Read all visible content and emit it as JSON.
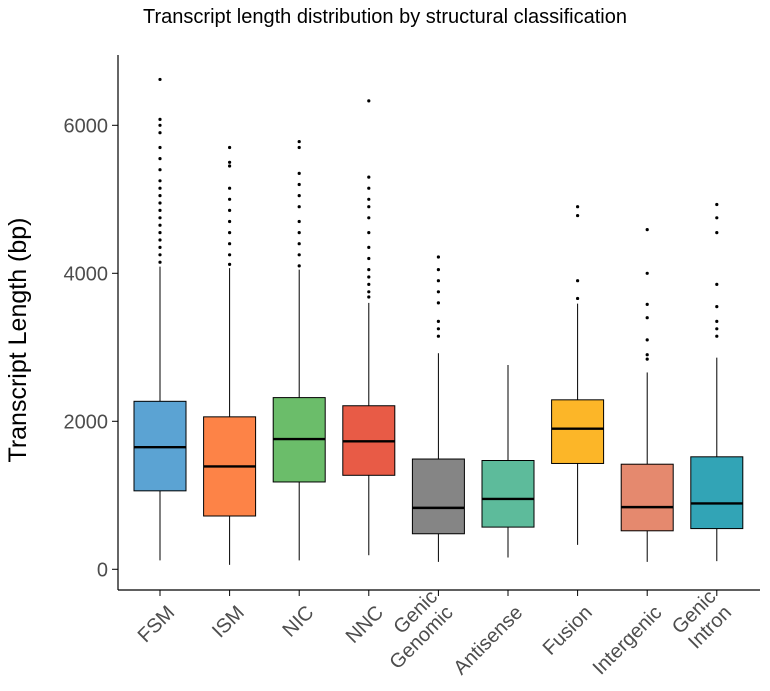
{
  "chart_data": {
    "type": "box",
    "title": "Transcript length distribution by structural classification",
    "xlabel": "",
    "ylabel": "Transcript Length (bp)",
    "ylim": [
      -280,
      6950
    ],
    "yticks": [
      0,
      2000,
      4000,
      6000
    ],
    "grid": false,
    "legend": "none",
    "categories": [
      {
        "label": [
          "FSM"
        ],
        "color": "#5ba3d3",
        "min": 120,
        "q1": 1060,
        "median": 1650,
        "q3": 2270,
        "max": 4090,
        "outliers": [
          4150,
          4250,
          4350,
          4450,
          4550,
          4650,
          4750,
          4850,
          4950,
          5050,
          5150,
          5250,
          5400,
          5550,
          5700,
          5900,
          6000,
          6080,
          6620
        ]
      },
      {
        "label": [
          "ISM"
        ],
        "color": "#fd8347",
        "min": 60,
        "q1": 720,
        "median": 1390,
        "q3": 2060,
        "max": 4070,
        "outliers": [
          4120,
          4250,
          4400,
          4550,
          4700,
          4850,
          5000,
          5150,
          5450,
          5500,
          5700
        ]
      },
      {
        "label": [
          "NIC"
        ],
        "color": "#6bbd6a",
        "min": 120,
        "q1": 1180,
        "median": 1760,
        "q3": 2320,
        "max": 4050,
        "outliers": [
          4100,
          4250,
          4400,
          4550,
          4700,
          4900,
          5050,
          5200,
          5350,
          5700,
          5780
        ]
      },
      {
        "label": [
          "NNC"
        ],
        "color": "#e85b46",
        "min": 190,
        "q1": 1270,
        "median": 1730,
        "q3": 2210,
        "max": 3600,
        "outliers": [
          3680,
          3750,
          3850,
          3950,
          4050,
          4200,
          4350,
          4550,
          4750,
          4900,
          5000,
          5150,
          5300,
          6330
        ]
      },
      {
        "label": [
          "Genic",
          "Genomic"
        ],
        "color": "#858585",
        "min": 100,
        "q1": 480,
        "median": 830,
        "q3": 1490,
        "max": 2920,
        "outliers": [
          3150,
          3250,
          3350,
          3600,
          3750,
          3900,
          4050,
          4220
        ]
      },
      {
        "label": [
          "Antisense"
        ],
        "color": "#5dbb9b",
        "min": 160,
        "q1": 570,
        "median": 950,
        "q3": 1470,
        "max": 2760,
        "outliers": []
      },
      {
        "label": [
          "Fusion"
        ],
        "color": "#fcb628",
        "min": 330,
        "q1": 1430,
        "median": 1900,
        "q3": 2290,
        "max": 3590,
        "outliers": [
          3660,
          3900,
          4780,
          4900
        ]
      },
      {
        "label": [
          "Intergenic"
        ],
        "color": "#e5896e",
        "min": 100,
        "q1": 520,
        "median": 840,
        "q3": 1420,
        "max": 2660,
        "outliers": [
          2840,
          2900,
          3100,
          3400,
          3580,
          4000,
          4590
        ]
      },
      {
        "label": [
          "Genic",
          "Intron"
        ],
        "color": "#32a4b6",
        "min": 110,
        "q1": 550,
        "median": 890,
        "q3": 1520,
        "max": 2860,
        "outliers": [
          3150,
          3250,
          3350,
          3550,
          3850,
          4550,
          4750,
          4930
        ]
      }
    ]
  }
}
